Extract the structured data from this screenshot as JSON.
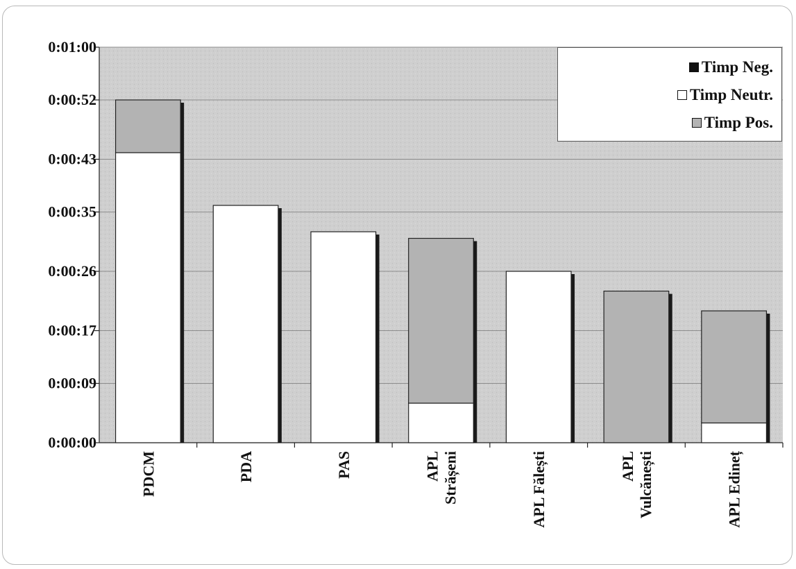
{
  "chart_data": {
    "type": "bar",
    "stacked": true,
    "title": "",
    "xlabel": "",
    "ylabel": "",
    "ylim": [
      0,
      60
    ],
    "y_ticks": [
      0,
      9,
      17,
      26,
      35,
      43,
      52,
      60
    ],
    "y_tick_labels": [
      "0:00:00",
      "0:00:09",
      "0:00:17",
      "0:00:26",
      "0:00:35",
      "0:00:43",
      "0:00:52",
      "0:01:00"
    ],
    "y_unit": "h:mm:ss",
    "grid": true,
    "legend_position": "top-right",
    "categories": [
      "PDCM",
      "PDA",
      "PAS",
      "APL\nStrășeni",
      "APL Fălești",
      "APL\nVulcănești",
      "APL Edineț"
    ],
    "series": [
      {
        "name": "Timp Neg.",
        "color": "#111111",
        "values": [
          0,
          0,
          0,
          0,
          0,
          0,
          0
        ]
      },
      {
        "name": "Timp Neutr.",
        "color": "#ffffff",
        "values": [
          44,
          36,
          32,
          6,
          26,
          0,
          3
        ]
      },
      {
        "name": "Timp Pos.",
        "color": "#b3b3b3",
        "values": [
          8,
          0,
          0,
          25,
          0,
          23,
          17
        ]
      }
    ]
  },
  "colors": {
    "plot_background": "#cfcfcf",
    "gridline": "#8c8c8c",
    "bar_shadow": "#1a1a1a"
  }
}
